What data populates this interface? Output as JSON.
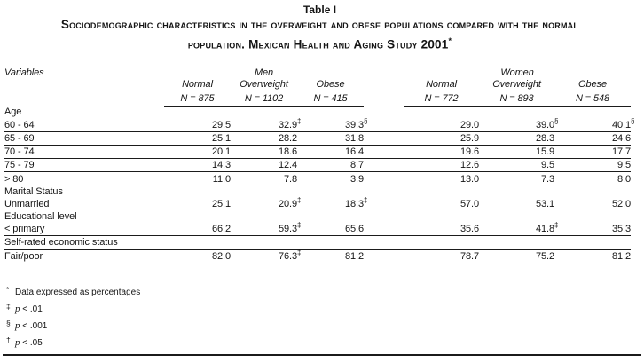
{
  "table_title": "Table I",
  "title_line1": "Sociodemographic characteristics in the overweight and obese populations compared with the normal",
  "title_line2": "population. Mexican Health and Aging Study 2001",
  "title_marker": "*",
  "colors": {
    "ink": "#141414",
    "background": "#ffffff"
  },
  "header": {
    "variables_label": "Variables",
    "groups": [
      {
        "label": "Men",
        "columns": [
          {
            "label": "Normal",
            "n": "N = 875"
          },
          {
            "label": "Overweight",
            "n": "N = 1102"
          },
          {
            "label": "Obese",
            "n": "N = 415"
          }
        ]
      },
      {
        "label": "Women",
        "columns": [
          {
            "label": "Normal",
            "n": "N = 772"
          },
          {
            "label": "Overweight",
            "n": "N = 893"
          },
          {
            "label": "Obese",
            "n": "N = 548"
          }
        ]
      }
    ]
  },
  "rows": [
    {
      "label": "Age",
      "section": true,
      "cells": []
    },
    {
      "label": "60 - 64",
      "indent": true,
      "rule_below": true,
      "cells": [
        {
          "v": "29.5"
        },
        {
          "v": "32.9",
          "m": "‡"
        },
        {
          "v": "39.3",
          "m": "§"
        },
        {
          "v": "29.0"
        },
        {
          "v": "39.0",
          "m": "§"
        },
        {
          "v": "40.1",
          "m": "§"
        }
      ]
    },
    {
      "label": "65 - 69",
      "indent": true,
      "rule_below": true,
      "cells": [
        {
          "v": "25.1"
        },
        {
          "v": "28.2"
        },
        {
          "v": "31.8"
        },
        {
          "v": "25.9"
        },
        {
          "v": "28.3"
        },
        {
          "v": "24.6"
        }
      ]
    },
    {
      "label": "70 - 74",
      "indent": true,
      "rule_below": true,
      "cells": [
        {
          "v": "20.1"
        },
        {
          "v": "18.6"
        },
        {
          "v": "16.4"
        },
        {
          "v": "19.6"
        },
        {
          "v": "15.9"
        },
        {
          "v": "17.7"
        }
      ]
    },
    {
      "label": "75 - 79",
      "indent": true,
      "rule_below": true,
      "cells": [
        {
          "v": "14.3"
        },
        {
          "v": "12.4"
        },
        {
          "v": "8.7"
        },
        {
          "v": "12.6"
        },
        {
          "v": "9.5"
        },
        {
          "v": "9.5"
        }
      ]
    },
    {
      "label": "> 80",
      "indent": true,
      "cells": [
        {
          "v": "11.0"
        },
        {
          "v": "7.8"
        },
        {
          "v": "3.9"
        },
        {
          "v": "13.0"
        },
        {
          "v": "7.3"
        },
        {
          "v": "8.0"
        }
      ]
    },
    {
      "label": "Marital Status",
      "section": true,
      "cells": []
    },
    {
      "label": "Unmarried",
      "indent": true,
      "cells": [
        {
          "v": "25.1"
        },
        {
          "v": "20.9",
          "m": "‡"
        },
        {
          "v": "18.3",
          "m": "‡"
        },
        {
          "v": "57.0"
        },
        {
          "v": "53.1"
        },
        {
          "v": "52.0"
        }
      ]
    },
    {
      "label": "Educational level",
      "section": true,
      "cells": []
    },
    {
      "label": "< primary",
      "indent": true,
      "rule_below": true,
      "cells": [
        {
          "v": "66.2"
        },
        {
          "v": "59.3",
          "m": "‡"
        },
        {
          "v": "65.6"
        },
        {
          "v": "35.6"
        },
        {
          "v": "41.8",
          "m": "‡"
        },
        {
          "v": "35.3"
        }
      ]
    },
    {
      "label": "Self-rated economic status",
      "section": true,
      "indent": true,
      "rule_below": true,
      "cells": []
    },
    {
      "label": "Fair/poor",
      "indent": true,
      "cells": [
        {
          "v": "82.0"
        },
        {
          "v": "76.3",
          "m": "‡"
        },
        {
          "v": "81.2"
        },
        {
          "v": "78.7"
        },
        {
          "v": "75.2"
        },
        {
          "v": "81.2"
        }
      ]
    }
  ],
  "footnotes": [
    {
      "symbol": "*",
      "text": "Data expressed as percentages",
      "italic_p": false
    },
    {
      "symbol": "‡",
      "text": "p < .01",
      "italic_p": true
    },
    {
      "symbol": "§",
      "text": "p < .001",
      "italic_p": true
    },
    {
      "symbol": "†",
      "text": "p < .05",
      "italic_p": true
    }
  ]
}
